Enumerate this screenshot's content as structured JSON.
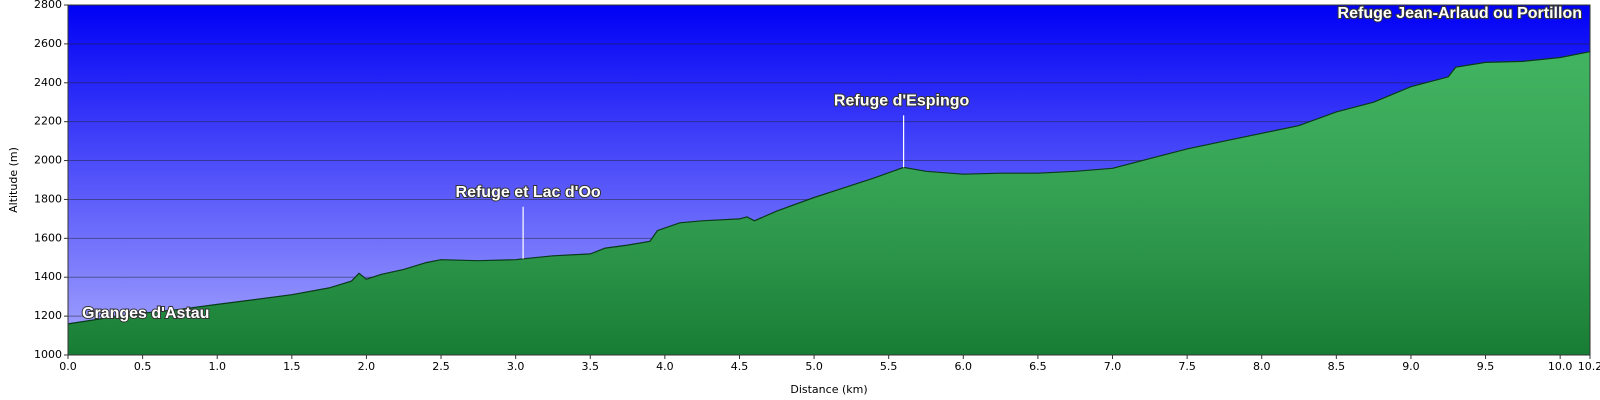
{
  "chart_data": {
    "type": "area",
    "xlabel": "Distance    (km)",
    "ylabel": "Altitude (m)",
    "x": [
      0,
      0.25,
      0.5,
      0.75,
      1.0,
      1.25,
      1.5,
      1.75,
      1.9,
      1.95,
      2.0,
      2.1,
      2.25,
      2.4,
      2.5,
      2.75,
      3.0,
      3.05,
      3.25,
      3.5,
      3.6,
      3.75,
      3.9,
      3.95,
      4.1,
      4.25,
      4.5,
      4.55,
      4.6,
      4.75,
      5.0,
      5.2,
      5.4,
      5.6,
      5.75,
      6.0,
      6.25,
      6.5,
      6.75,
      7.0,
      7.25,
      7.5,
      7.75,
      8.0,
      8.25,
      8.5,
      8.75,
      9.0,
      9.25,
      9.3,
      9.5,
      9.75,
      10.0,
      10.2
    ],
    "values": [
      1160,
      1190,
      1215,
      1235,
      1260,
      1285,
      1310,
      1345,
      1380,
      1420,
      1390,
      1415,
      1440,
      1475,
      1490,
      1485,
      1490,
      1495,
      1510,
      1520,
      1550,
      1565,
      1585,
      1640,
      1680,
      1690,
      1700,
      1710,
      1690,
      1740,
      1810,
      1860,
      1910,
      1965,
      1945,
      1930,
      1935,
      1935,
      1945,
      1960,
      2010,
      2060,
      2100,
      2140,
      2180,
      2250,
      2300,
      2380,
      2430,
      2480,
      2505,
      2510,
      2530,
      2560
    ],
    "color": "#1fa645",
    "xlim": [
      0,
      10.2
    ],
    "xticks": [
      {
        "value": 0,
        "label": "0.0"
      },
      0.5,
      {
        "value": 1,
        "label": "1.0"
      },
      1.5,
      {
        "value": 2,
        "label": "2.0"
      },
      2.5,
      {
        "value": 3,
        "label": "3.0"
      },
      3.5,
      {
        "value": 4,
        "label": "4.0"
      },
      4.5,
      {
        "value": 5,
        "label": "5.0"
      },
      5.5,
      {
        "value": 6,
        "label": "6.0"
      },
      6.5,
      {
        "value": 7,
        "label": "7.0"
      },
      7.5,
      {
        "value": 8,
        "label": "8.0"
      },
      8.5,
      {
        "value": 9,
        "label": "9.0"
      },
      9.5,
      {
        "value": 10,
        "label": "10.0"
      },
      10.2
    ],
    "ylim": [
      1000,
      2800
    ],
    "yticks": [
      1000,
      1200,
      1400,
      1600,
      1800,
      2000,
      2200,
      2400,
      2600,
      2800
    ],
    "grid": true,
    "annotations": [
      {
        "text": "Granges d'Astau",
        "x": 0,
        "y": 1160
      },
      {
        "text": "Refuge et Lac d'Oo",
        "x": 3.05,
        "y": 1495
      },
      {
        "text": "Refuge d'Espingo",
        "x": 5.6,
        "y": 1965
      },
      {
        "text": "Refuge Jean-Arlaud ou Portillon",
        "x": 10.2,
        "y": 2560
      }
    ]
  }
}
